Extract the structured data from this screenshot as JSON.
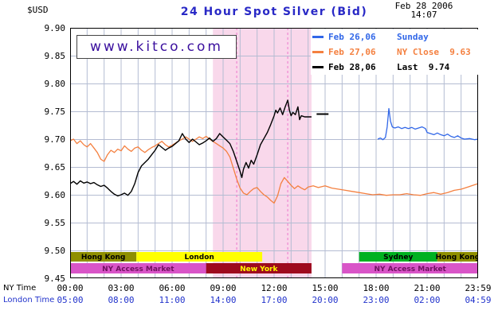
{
  "header": {
    "currency_label": "$USD",
    "title": "24 Hour Spot Silver (Bid)",
    "title_color": "#2929c6",
    "date": "Feb 28 2006",
    "time": "14:07"
  },
  "watermark": "www.kitco.com",
  "watermark_color": "#3a0f9e",
  "legend": [
    {
      "date": "Feb 26,06",
      "note": "Sunday",
      "value": "",
      "color": "#3167e8"
    },
    {
      "date": "Feb 27,06",
      "note": "NY Close",
      "value": "9.63",
      "color": "#f48040"
    },
    {
      "date": "Feb 28,06",
      "note": "Last",
      "value": "9.74",
      "color": "#000000"
    }
  ],
  "axes": {
    "y_ticks": [
      "9.90",
      "9.85",
      "9.80",
      "9.75",
      "9.70",
      "9.65",
      "9.60",
      "9.55",
      "9.50",
      "9.45"
    ],
    "ny_time_label": "NY Time",
    "london_time_label": "London Time",
    "ny_times": [
      "00:00",
      "03:00",
      "06:00",
      "09:00",
      "12:00",
      "15:00",
      "18:00",
      "21:00",
      "23:59"
    ],
    "london_times": [
      "05:00",
      "08:00",
      "11:00",
      "14:00",
      "17:00",
      "20:00",
      "23:00",
      "02:00",
      "04:59"
    ],
    "london_color": "#2233cc"
  },
  "sessions": {
    "rows": [
      [
        {
          "label": "Hong Kong",
          "from": 0,
          "to": 3.9,
          "color": "#8f8f00",
          "text_color": "#000000"
        },
        {
          "label": "London",
          "from": 3.9,
          "to": 11.3,
          "color": "#ffff00",
          "text_color": "#000000"
        },
        {
          "label": "Sydney",
          "from": 17.0,
          "to": 21.6,
          "color": "#00b121",
          "text_color": "#000000"
        },
        {
          "label": "Hong Kong",
          "from": 21.6,
          "to": 24,
          "color": "#8f8f00",
          "text_color": "#000000"
        }
      ],
      [
        {
          "label": "NY Access Market",
          "from": 0,
          "to": 8.0,
          "color": "#d955c8",
          "text_color": "#6f0f5f"
        },
        {
          "label": "New York",
          "from": 8.0,
          "to": 14.2,
          "color": "#9e0a1e",
          "text_color": "#ffff00"
        },
        {
          "label": "NY Access Market",
          "from": 16.0,
          "to": 24,
          "color": "#d955c8",
          "text_color": "#6f0f5f"
        }
      ]
    ]
  },
  "chart_data": {
    "type": "line",
    "title": "24 Hour Spot Silver (Bid)",
    "x_unit": "NY time (hours)",
    "xlim": [
      0,
      24
    ],
    "ylim": [
      9.45,
      9.9
    ],
    "y_tick_step": 0.05,
    "grid": true,
    "grid_color": "#b4bcd2",
    "legend_position": "top-right",
    "ny_session_band": {
      "from": 8.4,
      "to": 14.2,
      "color": "#f9d8eb",
      "dash_color": "#ee77cc",
      "dashed_lines": [
        9.8,
        12.8
      ]
    },
    "last_price_marker": {
      "from": 14.5,
      "to": 15.2,
      "price": 9.745,
      "color": "#000000"
    },
    "series": [
      {
        "id": "feb-26",
        "name": "Feb 26,06 (Sunday)",
        "color": "#3167e8",
        "width": 1.3,
        "points": [
          [
            18.1,
            9.7
          ],
          [
            18.25,
            9.702
          ],
          [
            18.4,
            9.699
          ],
          [
            18.55,
            9.703
          ],
          [
            18.65,
            9.722
          ],
          [
            18.75,
            9.755
          ],
          [
            18.85,
            9.732
          ],
          [
            18.95,
            9.722
          ],
          [
            19.1,
            9.72
          ],
          [
            19.3,
            9.722
          ],
          [
            19.5,
            9.719
          ],
          [
            19.7,
            9.721
          ],
          [
            19.9,
            9.719
          ],
          [
            20.1,
            9.721
          ],
          [
            20.3,
            9.718
          ],
          [
            20.5,
            9.72
          ],
          [
            20.7,
            9.722
          ],
          [
            20.9,
            9.719
          ],
          [
            21.0,
            9.712
          ],
          [
            21.2,
            9.71
          ],
          [
            21.4,
            9.708
          ],
          [
            21.6,
            9.711
          ],
          [
            21.8,
            9.708
          ],
          [
            22.0,
            9.706
          ],
          [
            22.2,
            9.709
          ],
          [
            22.4,
            9.705
          ],
          [
            22.6,
            9.703
          ],
          [
            22.8,
            9.706
          ],
          [
            23.0,
            9.702
          ],
          [
            23.2,
            9.7
          ],
          [
            23.5,
            9.701
          ],
          [
            23.8,
            9.699
          ],
          [
            24.0,
            9.7
          ]
        ]
      },
      {
        "id": "feb-27",
        "name": "Feb 27,06",
        "color": "#f48040",
        "width": 1.3,
        "points": [
          [
            0,
            9.697
          ],
          [
            0.2,
            9.7
          ],
          [
            0.4,
            9.692
          ],
          [
            0.6,
            9.697
          ],
          [
            0.8,
            9.69
          ],
          [
            1.0,
            9.686
          ],
          [
            1.2,
            9.692
          ],
          [
            1.4,
            9.684
          ],
          [
            1.6,
            9.676
          ],
          [
            1.8,
            9.664
          ],
          [
            2.0,
            9.66
          ],
          [
            2.2,
            9.672
          ],
          [
            2.4,
            9.68
          ],
          [
            2.6,
            9.676
          ],
          [
            2.8,
            9.682
          ],
          [
            3.0,
            9.679
          ],
          [
            3.2,
            9.688
          ],
          [
            3.4,
            9.682
          ],
          [
            3.6,
            9.678
          ],
          [
            3.8,
            9.684
          ],
          [
            4.0,
            9.686
          ],
          [
            4.2,
            9.68
          ],
          [
            4.4,
            9.676
          ],
          [
            4.6,
            9.681
          ],
          [
            4.8,
            9.685
          ],
          [
            5.0,
            9.688
          ],
          [
            5.2,
            9.692
          ],
          [
            5.4,
            9.696
          ],
          [
            5.6,
            9.69
          ],
          [
            5.8,
            9.686
          ],
          [
            6.0,
            9.689
          ],
          [
            6.2,
            9.693
          ],
          [
            6.4,
            9.697
          ],
          [
            6.6,
            9.7
          ],
          [
            6.8,
            9.704
          ],
          [
            7.0,
            9.7
          ],
          [
            7.2,
            9.696
          ],
          [
            7.4,
            9.7
          ],
          [
            7.6,
            9.704
          ],
          [
            7.8,
            9.701
          ],
          [
            8.0,
            9.705
          ],
          [
            8.2,
            9.7
          ],
          [
            8.4,
            9.696
          ],
          [
            8.6,
            9.692
          ],
          [
            8.8,
            9.688
          ],
          [
            9.0,
            9.684
          ],
          [
            9.2,
            9.678
          ],
          [
            9.4,
            9.668
          ],
          [
            9.6,
            9.648
          ],
          [
            9.8,
            9.628
          ],
          [
            10.0,
            9.612
          ],
          [
            10.2,
            9.603
          ],
          [
            10.4,
            9.6
          ],
          [
            10.6,
            9.606
          ],
          [
            10.8,
            9.611
          ],
          [
            11.0,
            9.613
          ],
          [
            11.2,
            9.606
          ],
          [
            11.4,
            9.6
          ],
          [
            11.6,
            9.596
          ],
          [
            11.8,
            9.59
          ],
          [
            12.0,
            9.585
          ],
          [
            12.2,
            9.598
          ],
          [
            12.4,
            9.62
          ],
          [
            12.6,
            9.631
          ],
          [
            12.8,
            9.624
          ],
          [
            13.0,
            9.617
          ],
          [
            13.2,
            9.611
          ],
          [
            13.4,
            9.616
          ],
          [
            13.6,
            9.612
          ],
          [
            13.8,
            9.609
          ],
          [
            14.0,
            9.614
          ],
          [
            14.3,
            9.616
          ],
          [
            14.6,
            9.613
          ],
          [
            15.0,
            9.616
          ],
          [
            15.4,
            9.612
          ],
          [
            15.8,
            9.61
          ],
          [
            16.2,
            9.608
          ],
          [
            16.6,
            9.606
          ],
          [
            17.0,
            9.604
          ],
          [
            17.4,
            9.602
          ],
          [
            17.8,
            9.6
          ],
          [
            18.2,
            9.601
          ],
          [
            18.6,
            9.599
          ],
          [
            19.0,
            9.6
          ],
          [
            19.4,
            9.6
          ],
          [
            19.8,
            9.602
          ],
          [
            20.2,
            9.6
          ],
          [
            20.6,
            9.599
          ],
          [
            21.0,
            9.602
          ],
          [
            21.4,
            9.604
          ],
          [
            21.8,
            9.601
          ],
          [
            22.2,
            9.604
          ],
          [
            22.6,
            9.608
          ],
          [
            23.0,
            9.61
          ],
          [
            23.4,
            9.614
          ],
          [
            23.8,
            9.618
          ],
          [
            24.0,
            9.62
          ]
        ]
      },
      {
        "id": "feb-28",
        "name": "Feb 28,06",
        "color": "#000000",
        "width": 1.4,
        "points": [
          [
            0,
            9.62
          ],
          [
            0.2,
            9.624
          ],
          [
            0.4,
            9.619
          ],
          [
            0.6,
            9.625
          ],
          [
            0.8,
            9.621
          ],
          [
            1.0,
            9.623
          ],
          [
            1.2,
            9.62
          ],
          [
            1.4,
            9.622
          ],
          [
            1.6,
            9.618
          ],
          [
            1.8,
            9.615
          ],
          [
            2.0,
            9.617
          ],
          [
            2.2,
            9.612
          ],
          [
            2.4,
            9.606
          ],
          [
            2.6,
            9.601
          ],
          [
            2.8,
            9.598
          ],
          [
            3.0,
            9.6
          ],
          [
            3.2,
            9.603
          ],
          [
            3.4,
            9.599
          ],
          [
            3.6,
            9.606
          ],
          [
            3.8,
            9.62
          ],
          [
            4.0,
            9.64
          ],
          [
            4.2,
            9.652
          ],
          [
            4.4,
            9.658
          ],
          [
            4.6,
            9.664
          ],
          [
            4.8,
            9.672
          ],
          [
            5.0,
            9.68
          ],
          [
            5.2,
            9.69
          ],
          [
            5.4,
            9.685
          ],
          [
            5.6,
            9.68
          ],
          [
            5.8,
            9.684
          ],
          [
            6.0,
            9.687
          ],
          [
            6.2,
            9.692
          ],
          [
            6.4,
            9.697
          ],
          [
            6.6,
            9.71
          ],
          [
            6.8,
            9.7
          ],
          [
            7.0,
            9.694
          ],
          [
            7.2,
            9.7
          ],
          [
            7.4,
            9.695
          ],
          [
            7.6,
            9.69
          ],
          [
            7.8,
            9.693
          ],
          [
            8.0,
            9.697
          ],
          [
            8.2,
            9.702
          ],
          [
            8.4,
            9.696
          ],
          [
            8.6,
            9.701
          ],
          [
            8.8,
            9.71
          ],
          [
            9.0,
            9.704
          ],
          [
            9.2,
            9.698
          ],
          [
            9.4,
            9.692
          ],
          [
            9.6,
            9.678
          ],
          [
            9.8,
            9.66
          ],
          [
            10.0,
            9.642
          ],
          [
            10.1,
            9.631
          ],
          [
            10.2,
            9.646
          ],
          [
            10.35,
            9.658
          ],
          [
            10.5,
            9.648
          ],
          [
            10.65,
            9.662
          ],
          [
            10.8,
            9.655
          ],
          [
            11.0,
            9.672
          ],
          [
            11.2,
            9.69
          ],
          [
            11.4,
            9.701
          ],
          [
            11.6,
            9.712
          ],
          [
            11.8,
            9.726
          ],
          [
            12.0,
            9.742
          ],
          [
            12.1,
            9.752
          ],
          [
            12.2,
            9.747
          ],
          [
            12.35,
            9.756
          ],
          [
            12.5,
            9.744
          ],
          [
            12.65,
            9.758
          ],
          [
            12.8,
            9.77
          ],
          [
            12.9,
            9.752
          ],
          [
            13.0,
            9.742
          ],
          [
            13.1,
            9.748
          ],
          [
            13.25,
            9.744
          ],
          [
            13.4,
            9.758
          ],
          [
            13.5,
            9.735
          ],
          [
            13.6,
            9.742
          ],
          [
            13.8,
            9.74
          ],
          [
            14.2,
            9.74
          ]
        ]
      }
    ]
  }
}
